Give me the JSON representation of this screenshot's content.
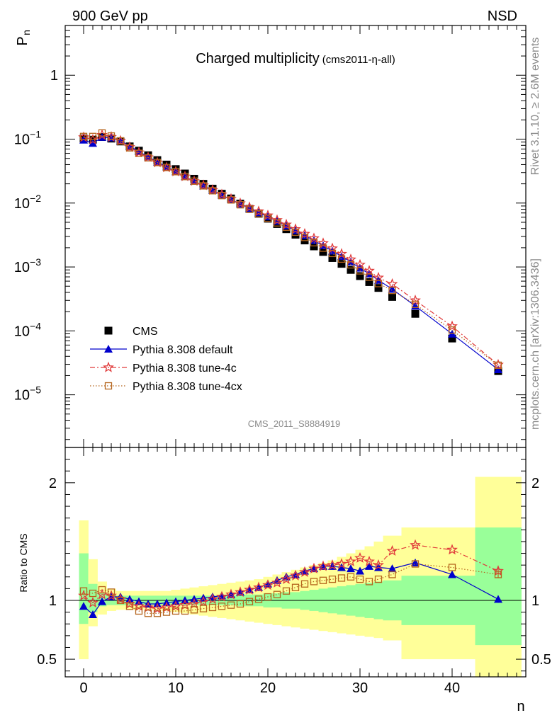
{
  "header": {
    "left": "900 GeV pp",
    "right": "NSD"
  },
  "side_labels": {
    "rivet": "Rivet 3.1.10, ≥ 2.6M events",
    "mcplots": "mcplots.cern.ch [arXiv:1306.3436]"
  },
  "chart_data": [
    {
      "type": "scatter",
      "title": "Charged multiplicity",
      "subtitle": "(cms2011-η-all)",
      "ylabel": "P",
      "ylabel_sub": "n",
      "xlabel": "n",
      "yscale": "log",
      "ylim": [
        1.5e-06,
        6
      ],
      "xlim": [
        -2,
        48
      ],
      "watermark": "CMS_2011_S8884919",
      "legend_position": "bottom-left",
      "y_ticks": [
        {
          "value": 1,
          "label": "1"
        },
        {
          "value": 0.1,
          "label": "10",
          "exp": "−1"
        },
        {
          "value": 0.01,
          "label": "10",
          "exp": "−2"
        },
        {
          "value": 0.001,
          "label": "10",
          "exp": "−3"
        },
        {
          "value": 0.0001,
          "label": "10",
          "exp": "−4"
        },
        {
          "value": 1e-05,
          "label": "10",
          "exp": "−5"
        }
      ],
      "series": [
        {
          "name": "CMS",
          "marker": "square",
          "color": "#000000",
          "x": [
            0,
            1,
            2,
            3,
            4,
            5,
            6,
            7,
            8,
            9,
            10,
            11,
            12,
            13,
            14,
            15,
            16,
            17,
            18,
            19,
            20,
            21,
            22,
            23,
            24,
            25,
            26,
            27,
            28,
            29,
            30,
            31,
            32,
            33.5,
            36,
            40,
            45
          ],
          "y": [
            0.102,
            0.098,
            0.108,
            0.102,
            0.092,
            0.077,
            0.066,
            0.056,
            0.047,
            0.04,
            0.034,
            0.029,
            0.024,
            0.02,
            0.0168,
            0.014,
            0.0118,
            0.0098,
            0.0081,
            0.0068,
            0.0057,
            0.0047,
            0.0039,
            0.0032,
            0.0026,
            0.0021,
            0.00172,
            0.00138,
            0.00112,
            0.0009,
            0.00072,
            0.00058,
            0.00047,
            0.00034,
            0.000185,
            7.6e-05,
            2.35e-05
          ]
        },
        {
          "name": "Pythia 8.308 default",
          "marker": "triangle",
          "color": "#0000cc",
          "x": [
            0,
            1,
            2,
            3,
            4,
            5,
            6,
            7,
            8,
            9,
            10,
            11,
            12,
            13,
            14,
            15,
            16,
            17,
            18,
            19,
            20,
            21,
            22,
            23,
            24,
            25,
            26,
            27,
            28,
            29,
            30,
            31,
            32,
            33.5,
            36,
            40,
            45
          ],
          "y": [
            0.097,
            0.086,
            0.107,
            0.105,
            0.095,
            0.078,
            0.064,
            0.053,
            0.044,
            0.037,
            0.031,
            0.026,
            0.022,
            0.0186,
            0.0158,
            0.0133,
            0.0114,
            0.0097,
            0.0083,
            0.0071,
            0.0061,
            0.0052,
            0.0044,
            0.0037,
            0.0031,
            0.0026,
            0.00215,
            0.00178,
            0.00147,
            0.0012,
            0.00096,
            0.00078,
            0.00062,
            0.00045,
            0.000245,
            8.95e-05,
            2.48e-05
          ]
        },
        {
          "name": "Pythia 8.308 tune-4c",
          "marker": "star",
          "color": "#e03a3a",
          "dash": "7,3,2,3",
          "x": [
            0,
            1,
            2,
            3,
            4,
            5,
            6,
            7,
            8,
            9,
            10,
            11,
            12,
            13,
            14,
            15,
            16,
            17,
            18,
            19,
            20,
            21,
            22,
            23,
            24,
            25,
            26,
            27,
            28,
            29,
            30,
            31,
            32,
            33.5,
            36,
            40,
            45
          ],
          "y": [
            0.107,
            0.098,
            0.116,
            0.108,
            0.094,
            0.075,
            0.062,
            0.052,
            0.043,
            0.036,
            0.031,
            0.026,
            0.022,
            0.0189,
            0.016,
            0.0136,
            0.0116,
            0.0099,
            0.0086,
            0.0074,
            0.0064,
            0.0054,
            0.0046,
            0.0039,
            0.0033,
            0.0028,
            0.00235,
            0.00195,
            0.0016,
            0.00131,
            0.00108,
            0.00087,
            0.00068,
            0.00054,
            0.0003,
            0.000118,
            2.95e-05
          ]
        },
        {
          "name": "Pythia 8.308 tune-4cx",
          "marker": "open-square",
          "color": "#b5651d",
          "dash": "1.5,2.5",
          "x": [
            0,
            1,
            2,
            3,
            4,
            5,
            6,
            7,
            8,
            9,
            10,
            11,
            12,
            13,
            14,
            15,
            16,
            17,
            18,
            19,
            20,
            21,
            22,
            23,
            24,
            25,
            26,
            27,
            28,
            29,
            30,
            31,
            32,
            33.5,
            36,
            40,
            45
          ],
          "y": [
            0.11,
            0.11,
            0.125,
            0.112,
            0.094,
            0.073,
            0.06,
            0.051,
            0.043,
            0.036,
            0.031,
            0.026,
            0.022,
            0.0186,
            0.0156,
            0.0131,
            0.0112,
            0.0094,
            0.008,
            0.0068,
            0.0058,
            0.0049,
            0.0042,
            0.0035,
            0.0029,
            0.0024,
            0.00197,
            0.00163,
            0.00133,
            0.00108,
            0.00087,
            0.00069,
            0.00055,
            0.00043,
            0.00026,
            0.000103,
            2.9e-05
          ]
        }
      ]
    },
    {
      "type": "scatter",
      "ylabel": "Ratio to CMS",
      "xlabel": "n",
      "ylim": [
        0.35,
        2.3
      ],
      "xlim": [
        -2,
        48
      ],
      "reference_line": 1,
      "y_ticks": [
        0.5,
        1,
        2
      ],
      "x_ticks": [
        0,
        10,
        20,
        30,
        40
      ],
      "bands": {
        "x_edges": [
          -0.5,
          0.5,
          1.5,
          2.5,
          3.5,
          4.5,
          5.5,
          6.5,
          7.5,
          8.5,
          9.5,
          10.5,
          11.5,
          12.5,
          13.5,
          14.5,
          15.5,
          16.5,
          17.5,
          18.5,
          19.5,
          20.5,
          21.5,
          22.5,
          23.5,
          24.5,
          25.5,
          26.5,
          27.5,
          28.5,
          29.5,
          30.5,
          31.5,
          32.5,
          34.5,
          37.5,
          42.5,
          47.5
        ],
        "yellow_low": [
          0.5,
          0.78,
          0.88,
          0.91,
          0.92,
          0.92,
          0.92,
          0.92,
          0.92,
          0.91,
          0.9,
          0.89,
          0.88,
          0.87,
          0.86,
          0.85,
          0.84,
          0.83,
          0.82,
          0.81,
          0.8,
          0.79,
          0.78,
          0.77,
          0.76,
          0.75,
          0.74,
          0.73,
          0.72,
          0.71,
          0.7,
          0.69,
          0.68,
          0.66,
          0.5,
          0.5,
          0.3
        ],
        "yellow_high": [
          1.68,
          1.35,
          1.16,
          1.1,
          1.08,
          1.08,
          1.08,
          1.08,
          1.08,
          1.08,
          1.09,
          1.1,
          1.11,
          1.12,
          1.13,
          1.14,
          1.15,
          1.16,
          1.17,
          1.18,
          1.2,
          1.22,
          1.24,
          1.26,
          1.28,
          1.3,
          1.32,
          1.34,
          1.37,
          1.4,
          1.43,
          1.46,
          1.5,
          1.55,
          1.62,
          1.62,
          2.05
        ],
        "green_low": [
          0.8,
          0.9,
          0.95,
          0.96,
          0.96,
          0.96,
          0.96,
          0.96,
          0.96,
          0.96,
          0.96,
          0.96,
          0.96,
          0.96,
          0.96,
          0.96,
          0.96,
          0.95,
          0.95,
          0.95,
          0.94,
          0.94,
          0.93,
          0.93,
          0.92,
          0.91,
          0.9,
          0.89,
          0.88,
          0.87,
          0.86,
          0.85,
          0.84,
          0.83,
          0.79,
          0.79,
          0.62
        ],
        "green_high": [
          1.4,
          1.14,
          1.06,
          1.04,
          1.04,
          1.04,
          1.04,
          1.04,
          1.04,
          1.04,
          1.04,
          1.04,
          1.04,
          1.04,
          1.04,
          1.04,
          1.04,
          1.05,
          1.05,
          1.05,
          1.06,
          1.06,
          1.07,
          1.07,
          1.08,
          1.09,
          1.1,
          1.11,
          1.12,
          1.13,
          1.14,
          1.15,
          1.16,
          1.17,
          1.21,
          1.21,
          1.62
        ],
        "yellow_color": "#ffff99",
        "green_color": "#99ff99"
      },
      "series": [
        {
          "name": "Pythia 8.308 default",
          "marker": "triangle",
          "color": "#0000cc",
          "x": [
            0,
            1,
            2,
            3,
            4,
            5,
            6,
            7,
            8,
            9,
            10,
            11,
            12,
            13,
            14,
            15,
            16,
            17,
            18,
            19,
            20,
            21,
            22,
            23,
            24,
            25,
            26,
            27,
            28,
            29,
            30,
            31,
            32,
            33.5,
            36,
            40,
            45
          ],
          "y": [
            0.95,
            0.88,
            0.99,
            1.03,
            1.03,
            1.01,
            0.99,
            0.97,
            0.97,
            0.98,
            0.99,
            1.0,
            1.01,
            1.02,
            1.03,
            1.04,
            1.05,
            1.07,
            1.09,
            1.11,
            1.14,
            1.17,
            1.2,
            1.22,
            1.25,
            1.27,
            1.29,
            1.29,
            1.28,
            1.27,
            1.25,
            1.29,
            1.28,
            1.27,
            1.32,
            1.22,
            1.01
          ],
          "yerr": [
            0,
            0,
            0,
            0,
            0,
            0,
            0,
            0,
            0,
            0,
            0,
            0,
            0,
            0,
            0,
            0,
            0,
            0,
            0,
            0,
            0,
            0,
            0,
            0,
            0,
            0,
            0,
            0,
            0,
            0,
            0,
            0,
            0,
            0,
            0,
            0,
            0.03
          ]
        },
        {
          "name": "Pythia 8.308 tune-4c",
          "marker": "star",
          "color": "#e03a3a",
          "dash": "7,3,2,3",
          "x": [
            0,
            1,
            2,
            3,
            4,
            5,
            6,
            7,
            8,
            9,
            10,
            11,
            12,
            13,
            14,
            15,
            16,
            17,
            18,
            19,
            20,
            21,
            22,
            23,
            24,
            25,
            26,
            27,
            28,
            29,
            30,
            31,
            32,
            33.5,
            36,
            40,
            45
          ],
          "y": [
            1.04,
            0.98,
            1.05,
            1.04,
            1.01,
            0.97,
            0.95,
            0.94,
            0.93,
            0.94,
            0.95,
            0.96,
            0.97,
            0.99,
            1.01,
            1.03,
            1.05,
            1.07,
            1.09,
            1.11,
            1.13,
            1.15,
            1.18,
            1.21,
            1.24,
            1.27,
            1.29,
            1.3,
            1.31,
            1.33,
            1.36,
            1.33,
            1.3,
            1.42,
            1.47,
            1.43,
            1.25
          ],
          "yerr": [
            0,
            0,
            0,
            0,
            0,
            0,
            0,
            0,
            0,
            0,
            0,
            0,
            0,
            0,
            0,
            0,
            0,
            0,
            0,
            0,
            0,
            0,
            0,
            0,
            0,
            0,
            0,
            0,
            0,
            0,
            0,
            0,
            0,
            0,
            0,
            0,
            0.03
          ]
        },
        {
          "name": "Pythia 8.308 tune-4cx",
          "marker": "open-square",
          "color": "#b5651d",
          "dash": "1.5,2.5",
          "x": [
            0,
            1,
            2,
            3,
            4,
            5,
            6,
            7,
            8,
            9,
            10,
            11,
            12,
            13,
            14,
            15,
            16,
            17,
            18,
            19,
            20,
            21,
            22,
            23,
            24,
            25,
            26,
            27,
            28,
            29,
            30,
            31,
            32,
            33.5,
            36,
            40,
            45
          ],
          "y": [
            1.08,
            1.06,
            1.09,
            1.07,
            1.0,
            0.95,
            0.91,
            0.89,
            0.89,
            0.9,
            0.91,
            0.91,
            0.92,
            0.93,
            0.94,
            0.95,
            0.96,
            0.97,
            0.99,
            1.01,
            1.03,
            1.05,
            1.08,
            1.11,
            1.14,
            1.16,
            1.17,
            1.18,
            1.19,
            1.2,
            1.18,
            1.16,
            1.18,
            1.22,
            1.31,
            1.28,
            1.22
          ],
          "yerr": [
            0,
            0,
            0,
            0,
            0,
            0,
            0,
            0,
            0,
            0,
            0,
            0,
            0,
            0,
            0,
            0,
            0,
            0,
            0,
            0,
            0,
            0,
            0,
            0,
            0,
            0,
            0,
            0,
            0,
            0,
            0,
            0,
            0,
            0,
            0,
            0,
            0.03
          ]
        }
      ]
    }
  ]
}
